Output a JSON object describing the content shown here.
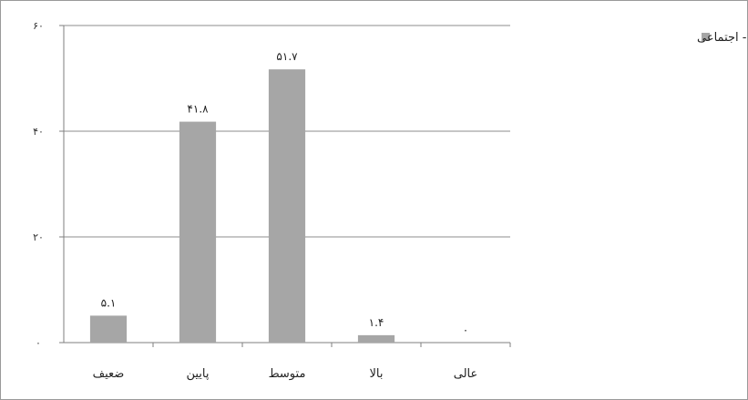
{
  "chart_data": {
    "type": "bar",
    "categories": [
      "ضعیف",
      "پایین",
      "متوسط",
      "بالا",
      "عالی"
    ],
    "values": [
      5.1,
      41.8,
      51.7,
      1.4,
      0
    ],
    "value_labels": [
      "۵.۱",
      "۴۱.۸",
      "۵۱.۷",
      "۱.۴",
      "۰"
    ],
    "series": [
      {
        "name": "وضعیت اقتصادی - اجتماعی",
        "values": [
          5.1,
          41.8,
          51.7,
          1.4,
          0
        ]
      }
    ],
    "yticks": [
      0,
      20,
      40,
      60
    ],
    "ytick_labels": [
      "۰",
      "۲۰",
      "۴۰",
      "۶۰"
    ],
    "ylim": [
      0,
      60
    ],
    "grid": true,
    "legend_position": "top-right",
    "colors": {
      "bar": "#a6a6a6",
      "grid": "#8c8c8c",
      "axis": "#7f7f7f"
    }
  }
}
